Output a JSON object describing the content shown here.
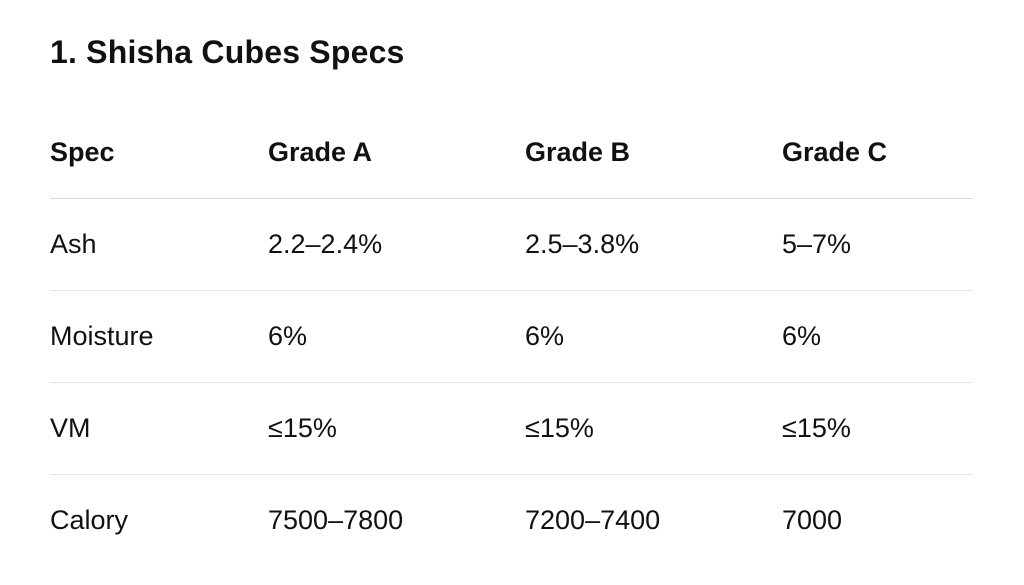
{
  "title": "1. Shisha Cubes Specs",
  "table": {
    "headers": [
      "Spec",
      "Grade A",
      "Grade B",
      "Grade C"
    ],
    "rows": [
      [
        "Ash",
        "2.2–2.4%",
        "2.5–3.8%",
        "5–7%"
      ],
      [
        "Moisture",
        "6%",
        "6%",
        "6%"
      ],
      [
        "VM",
        "≤15%",
        "≤15%",
        "≤15%"
      ],
      [
        "Calory",
        "7500–7800",
        "7200–7400",
        "7000"
      ]
    ]
  }
}
